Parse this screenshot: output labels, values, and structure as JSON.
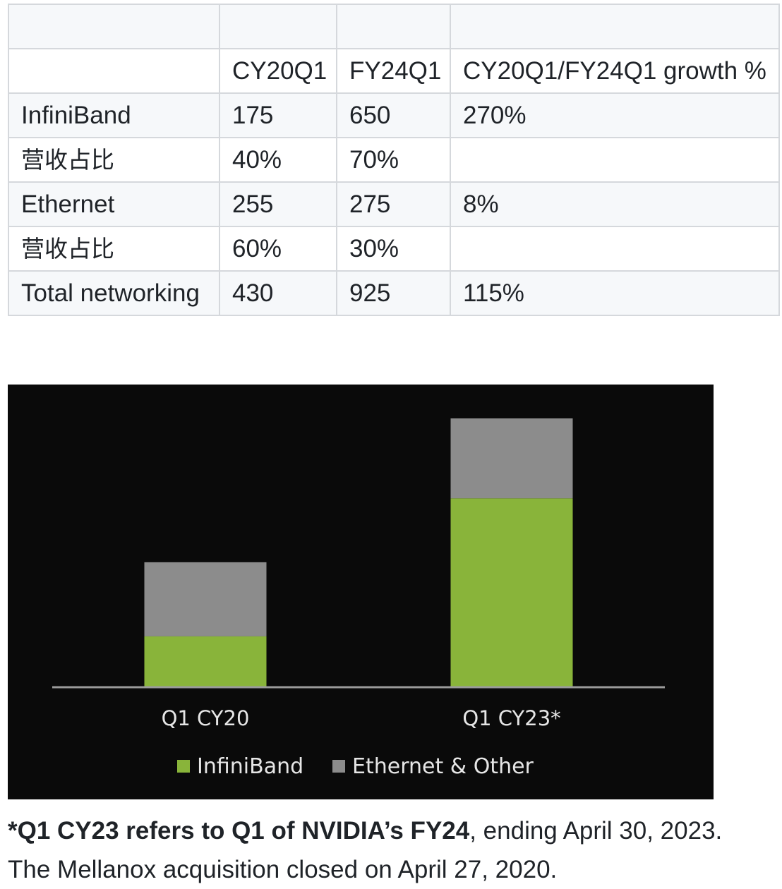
{
  "table": {
    "header_row": [
      "",
      "CY20Q1",
      "FY24Q1",
      "CY20Q1/FY24Q1 growth %"
    ],
    "rows": [
      [
        "InfiniBand",
        "175",
        "650",
        "270%"
      ],
      [
        "营收占比",
        "40%",
        "70%",
        ""
      ],
      [
        "Ethernet",
        "255",
        "275",
        "8%"
      ],
      [
        "营收占比",
        "60%",
        "30%",
        ""
      ],
      [
        "Total networking",
        "430",
        "925",
        "115%"
      ]
    ]
  },
  "chart_data": {
    "type": "bar",
    "stacked": true,
    "categories": [
      "Q1 CY20",
      "Q1 CY23*"
    ],
    "series": [
      {
        "name": "InfiniBand",
        "values": [
          175,
          650
        ],
        "color": "#89b43a"
      },
      {
        "name": "Ethernet & Other",
        "values": [
          255,
          275
        ],
        "color": "#8c8c8c"
      }
    ],
    "title": "",
    "xlabel": "",
    "ylabel": "",
    "ylim": [
      0,
      925
    ],
    "grid": false,
    "legend": "bottom-center",
    "background": "#0a0a0a",
    "axis_color": "#9a9a9a",
    "text_color": "#e6e6e6"
  },
  "caption": {
    "bold_text": "*Q1 CY23 refers to Q1 of NVIDIA’s FY24",
    "line1_rest": ", ending April 30, 2023.",
    "line2": "The Mellanox acquisition closed on April 27, 2020."
  }
}
